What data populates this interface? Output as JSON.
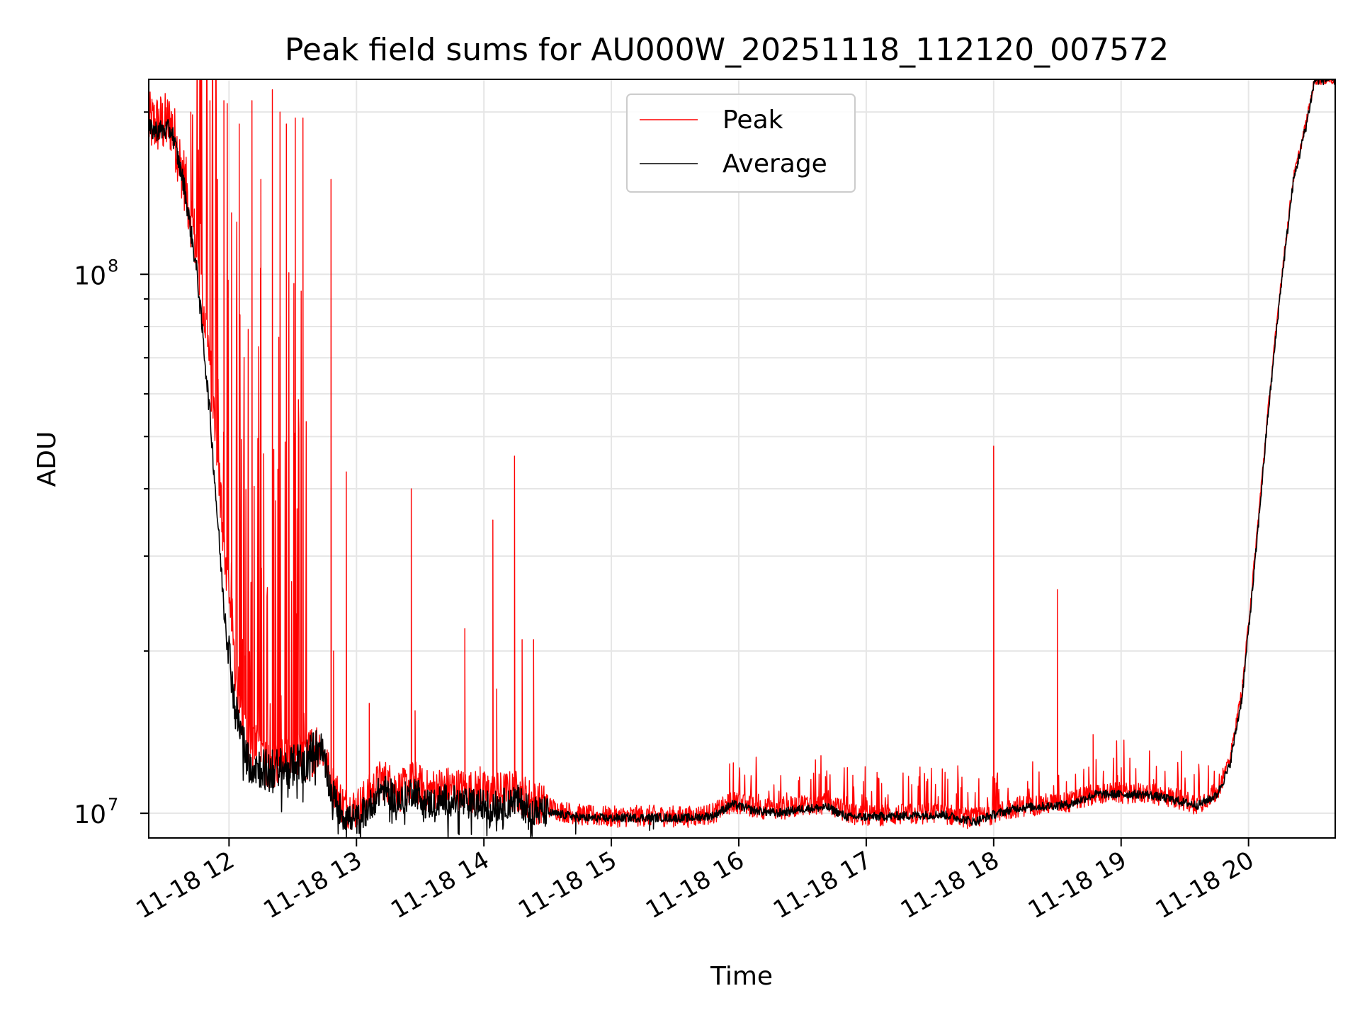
{
  "chart_data": {
    "type": "line",
    "title": "Peak field sums for AU000W_20251118_112120_007572",
    "xlabel": "Time",
    "ylabel": "ADU",
    "yscale": "log",
    "xlim_hours": [
      11.37,
      20.68
    ],
    "ylim": [
      9000000,
      230000000
    ],
    "x_ticks": [
      {
        "label": "11-18 12",
        "hour": 12
      },
      {
        "label": "11-18 13",
        "hour": 13
      },
      {
        "label": "11-18 14",
        "hour": 14
      },
      {
        "label": "11-18 15",
        "hour": 15
      },
      {
        "label": "11-18 16",
        "hour": 16
      },
      {
        "label": "11-18 17",
        "hour": 17
      },
      {
        "label": "11-18 18",
        "hour": 18
      },
      {
        "label": "11-18 19",
        "hour": 19
      },
      {
        "label": "11-18 20",
        "hour": 20
      }
    ],
    "y_ticks": [
      {
        "base": "10",
        "exp": "7",
        "value": 10000000
      },
      {
        "base": "10",
        "exp": "8",
        "value": 100000000
      }
    ],
    "grid": true,
    "legend_position": "top-center",
    "series": [
      {
        "name": "Peak",
        "color": "#ff0000",
        "spikes": [
          [
            11.7,
            200000000
          ],
          [
            11.76,
            170000000
          ],
          [
            11.85,
            210000000
          ],
          [
            11.91,
            150000000
          ],
          [
            11.96,
            210000000
          ],
          [
            12.02,
            130000000
          ],
          [
            12.08,
            190000000
          ],
          [
            12.18,
            210000000
          ],
          [
            12.25,
            150000000
          ],
          [
            12.34,
            220000000
          ],
          [
            12.4,
            200000000
          ],
          [
            12.45,
            190000000
          ],
          [
            12.52,
            195000000
          ],
          [
            12.58,
            195000000
          ],
          [
            12.8,
            150000000
          ],
          [
            12.82,
            20000000
          ],
          [
            12.92,
            43000000
          ],
          [
            13.1,
            16000000
          ],
          [
            13.43,
            40000000
          ],
          [
            13.46,
            15500000
          ],
          [
            13.85,
            22000000
          ],
          [
            13.97,
            12200000
          ],
          [
            14.07,
            35000000
          ],
          [
            14.1,
            17000000
          ],
          [
            14.24,
            46000000
          ],
          [
            14.3,
            21000000
          ],
          [
            14.39,
            21000000
          ],
          [
            18.0,
            48000000
          ],
          [
            18.5,
            26000000
          ],
          [
            18.78,
            14000000
          ]
        ],
        "trend": [
          [
            11.37,
            190000000
          ],
          [
            11.55,
            190000000
          ],
          [
            11.65,
            150000000
          ],
          [
            11.75,
            110000000
          ],
          [
            11.85,
            68000000
          ],
          [
            11.95,
            34000000
          ],
          [
            12.05,
            18000000
          ],
          [
            12.15,
            13500000
          ],
          [
            12.3,
            12500000
          ],
          [
            12.5,
            12500000
          ],
          [
            12.6,
            12800000
          ],
          [
            12.72,
            13500000
          ],
          [
            12.8,
            11500000
          ],
          [
            12.9,
            10300000
          ],
          [
            13.0,
            10200000
          ],
          [
            13.1,
            10800000
          ],
          [
            13.2,
            11600000
          ],
          [
            13.35,
            11000000
          ],
          [
            13.45,
            11500000
          ],
          [
            13.55,
            11000000
          ],
          [
            13.7,
            11200000
          ],
          [
            13.9,
            11000000
          ],
          [
            14.1,
            10900000
          ],
          [
            14.25,
            11000000
          ],
          [
            14.4,
            10500000
          ],
          [
            14.6,
            10100000
          ],
          [
            14.8,
            9900000
          ],
          [
            15.0,
            9850000
          ],
          [
            15.3,
            9900000
          ],
          [
            15.6,
            9850000
          ],
          [
            15.8,
            10000000
          ],
          [
            15.95,
            10500000
          ],
          [
            16.1,
            10300000
          ],
          [
            16.3,
            10100000
          ],
          [
            16.5,
            10400000
          ],
          [
            16.7,
            10400000
          ],
          [
            16.85,
            10000000
          ],
          [
            17.0,
            9900000
          ],
          [
            17.3,
            9950000
          ],
          [
            17.6,
            10000000
          ],
          [
            17.85,
            9750000
          ],
          [
            18.0,
            10000000
          ],
          [
            18.2,
            10300000
          ],
          [
            18.4,
            10400000
          ],
          [
            18.6,
            10500000
          ],
          [
            18.8,
            10900000
          ],
          [
            19.0,
            10900000
          ],
          [
            19.2,
            10900000
          ],
          [
            19.4,
            10700000
          ],
          [
            19.6,
            10400000
          ],
          [
            19.75,
            11000000
          ],
          [
            19.85,
            12500000
          ],
          [
            19.95,
            17000000
          ],
          [
            20.05,
            30000000
          ],
          [
            20.15,
            55000000
          ],
          [
            20.25,
            95000000
          ],
          [
            20.35,
            150000000
          ],
          [
            20.45,
            190000000
          ],
          [
            20.52,
            230000000
          ]
        ]
      },
      {
        "name": "Average",
        "color": "#000000",
        "spikes": [
          [
            12.35,
            11800000
          ],
          [
            12.45,
            11700000
          ],
          [
            12.58,
            10500000
          ],
          [
            14.72,
            9150000
          ],
          [
            15.3,
            9300000
          ],
          [
            15.33,
            9350000
          ]
        ],
        "trend": [
          [
            11.37,
            185000000
          ],
          [
            11.55,
            185000000
          ],
          [
            11.65,
            145000000
          ],
          [
            11.75,
            100000000
          ],
          [
            11.85,
            55000000
          ],
          [
            11.95,
            26000000
          ],
          [
            12.05,
            15500000
          ],
          [
            12.15,
            12500000
          ],
          [
            12.3,
            12000000
          ],
          [
            12.5,
            12200000
          ],
          [
            12.6,
            12600000
          ],
          [
            12.72,
            13400000
          ],
          [
            12.8,
            11000000
          ],
          [
            12.9,
            9900000
          ],
          [
            13.0,
            9700000
          ],
          [
            13.1,
            10300000
          ],
          [
            13.2,
            11100000
          ],
          [
            13.35,
            10500000
          ],
          [
            13.45,
            11100000
          ],
          [
            13.55,
            10400000
          ],
          [
            13.7,
            10600000
          ],
          [
            13.9,
            10400000
          ],
          [
            14.1,
            10300000
          ],
          [
            14.25,
            10600000
          ],
          [
            14.4,
            10100000
          ],
          [
            14.6,
            9950000
          ],
          [
            14.8,
            9800000
          ],
          [
            15.0,
            9800000
          ],
          [
            15.3,
            9820000
          ],
          [
            15.6,
            9800000
          ],
          [
            15.8,
            9900000
          ],
          [
            15.95,
            10400000
          ],
          [
            16.1,
            10150000
          ],
          [
            16.3,
            10000000
          ],
          [
            16.5,
            10200000
          ],
          [
            16.7,
            10250000
          ],
          [
            16.85,
            9850000
          ],
          [
            17.0,
            9850000
          ],
          [
            17.3,
            9900000
          ],
          [
            17.6,
            9950000
          ],
          [
            17.85,
            9650000
          ],
          [
            18.0,
            9950000
          ],
          [
            18.2,
            10250000
          ],
          [
            18.4,
            10300000
          ],
          [
            18.6,
            10400000
          ],
          [
            18.8,
            10850000
          ],
          [
            19.0,
            10850000
          ],
          [
            19.2,
            10850000
          ],
          [
            19.4,
            10600000
          ],
          [
            19.6,
            10350000
          ],
          [
            19.75,
            10800000
          ],
          [
            19.85,
            12200000
          ],
          [
            19.95,
            16500000
          ],
          [
            20.05,
            29000000
          ],
          [
            20.15,
            54000000
          ],
          [
            20.25,
            93000000
          ],
          [
            20.35,
            148000000
          ],
          [
            20.45,
            188000000
          ],
          [
            20.52,
            230000000
          ]
        ]
      }
    ]
  }
}
